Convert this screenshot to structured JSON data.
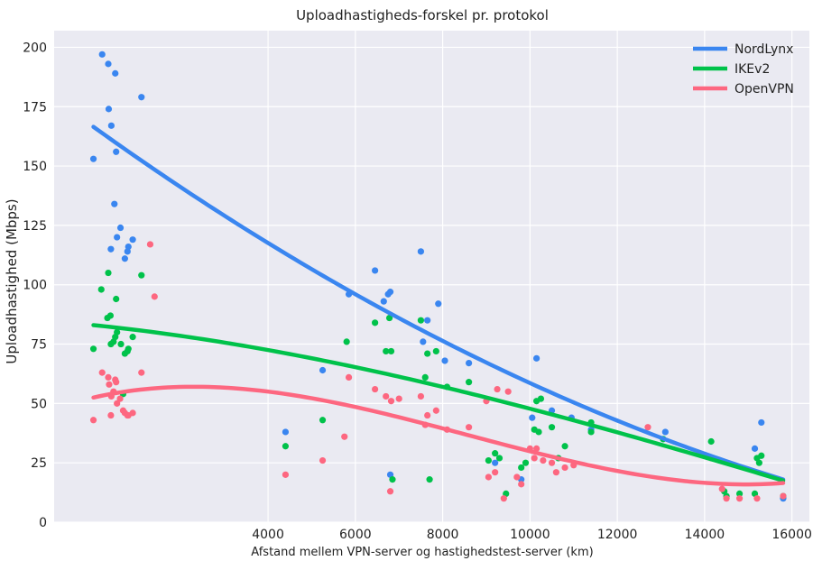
{
  "chart_data": {
    "type": "scatter",
    "title": "Uploadhastigheds-forskel pr. protokol",
    "xlabel": "Afstand mellem VPN-server og hastighedstest-server (km)",
    "ylabel": "Uploadhastighed (Mbps)",
    "xlim": [
      -900,
      16400
    ],
    "ylim": [
      0,
      207
    ],
    "xticks": [
      4000,
      6000,
      8000,
      10000,
      12000,
      14000,
      16000
    ],
    "yticks": [
      0,
      25,
      50,
      75,
      100,
      125,
      150,
      175,
      200
    ],
    "grid": true,
    "legend_position": "top-right",
    "series": [
      {
        "name": "NordLynx",
        "color": "#3a86f0",
        "points": [
          [
            0,
            153
          ],
          [
            200,
            197
          ],
          [
            340,
            193
          ],
          [
            350,
            174
          ],
          [
            410,
            167
          ],
          [
            400,
            115
          ],
          [
            480,
            134
          ],
          [
            500,
            189
          ],
          [
            520,
            156
          ],
          [
            540,
            120
          ],
          [
            620,
            124
          ],
          [
            720,
            111
          ],
          [
            780,
            114
          ],
          [
            800,
            116
          ],
          [
            900,
            119
          ],
          [
            1100,
            179
          ],
          [
            4400,
            38
          ],
          [
            5250,
            64
          ],
          [
            5850,
            96
          ],
          [
            6450,
            106
          ],
          [
            6650,
            93
          ],
          [
            6750,
            96
          ],
          [
            6800,
            97
          ],
          [
            6800,
            20
          ],
          [
            7500,
            114
          ],
          [
            7550,
            76
          ],
          [
            7650,
            85
          ],
          [
            7900,
            92
          ],
          [
            8050,
            68
          ],
          [
            8600,
            67
          ],
          [
            9200,
            25
          ],
          [
            9800,
            18
          ],
          [
            10050,
            44
          ],
          [
            10150,
            69
          ],
          [
            10500,
            47
          ],
          [
            10950,
            44
          ],
          [
            11400,
            39
          ],
          [
            13100,
            38
          ],
          [
            15150,
            31
          ],
          [
            15300,
            42
          ],
          [
            15800,
            10
          ]
        ]
      },
      {
        "name": "IKEv2",
        "color": "#00c24a",
        "points": [
          [
            0,
            73
          ],
          [
            180,
            98
          ],
          [
            320,
            86
          ],
          [
            340,
            105
          ],
          [
            390,
            87
          ],
          [
            400,
            75
          ],
          [
            460,
            76
          ],
          [
            500,
            78
          ],
          [
            520,
            94
          ],
          [
            540,
            80
          ],
          [
            630,
            75
          ],
          [
            680,
            54
          ],
          [
            720,
            71
          ],
          [
            780,
            72
          ],
          [
            800,
            73
          ],
          [
            900,
            78
          ],
          [
            1100,
            104
          ],
          [
            4400,
            32
          ],
          [
            5250,
            43
          ],
          [
            5800,
            76
          ],
          [
            6450,
            84
          ],
          [
            6700,
            72
          ],
          [
            6780,
            86
          ],
          [
            6820,
            72
          ],
          [
            6850,
            18
          ],
          [
            7500,
            85
          ],
          [
            7600,
            61
          ],
          [
            7650,
            71
          ],
          [
            7700,
            18
          ],
          [
            7850,
            72
          ],
          [
            8100,
            57
          ],
          [
            8600,
            59
          ],
          [
            9050,
            26
          ],
          [
            9200,
            29
          ],
          [
            9300,
            27
          ],
          [
            9450,
            12
          ],
          [
            9800,
            23
          ],
          [
            9900,
            25
          ],
          [
            10100,
            39
          ],
          [
            10150,
            51
          ],
          [
            10200,
            38
          ],
          [
            10250,
            52
          ],
          [
            10500,
            40
          ],
          [
            10650,
            27
          ],
          [
            10800,
            32
          ],
          [
            11400,
            38
          ],
          [
            11400,
            42
          ],
          [
            13050,
            35
          ],
          [
            14150,
            34
          ],
          [
            14450,
            13
          ],
          [
            14500,
            11
          ],
          [
            14800,
            12
          ],
          [
            15150,
            12
          ],
          [
            15200,
            27
          ],
          [
            15250,
            25
          ],
          [
            15300,
            28
          ],
          [
            15800,
            11
          ]
        ]
      },
      {
        "name": "OpenVPN",
        "color": "#fd6780",
        "points": [
          [
            0,
            43
          ],
          [
            200,
            63
          ],
          [
            340,
            61
          ],
          [
            360,
            58
          ],
          [
            400,
            45
          ],
          [
            410,
            53
          ],
          [
            460,
            55
          ],
          [
            500,
            60
          ],
          [
            520,
            59
          ],
          [
            540,
            50
          ],
          [
            610,
            52
          ],
          [
            680,
            47
          ],
          [
            720,
            46
          ],
          [
            780,
            45
          ],
          [
            800,
            45
          ],
          [
            900,
            46
          ],
          [
            1100,
            63
          ],
          [
            1300,
            117
          ],
          [
            1400,
            95
          ],
          [
            4400,
            20
          ],
          [
            5250,
            26
          ],
          [
            5750,
            36
          ],
          [
            5850,
            61
          ],
          [
            6450,
            56
          ],
          [
            6700,
            53
          ],
          [
            6800,
            13
          ],
          [
            6820,
            51
          ],
          [
            7000,
            52
          ],
          [
            7500,
            53
          ],
          [
            7600,
            41
          ],
          [
            7650,
            45
          ],
          [
            7850,
            47
          ],
          [
            8100,
            39
          ],
          [
            8600,
            40
          ],
          [
            9000,
            51
          ],
          [
            9050,
            19
          ],
          [
            9200,
            21
          ],
          [
            9250,
            56
          ],
          [
            9400,
            10
          ],
          [
            9500,
            55
          ],
          [
            9700,
            19
          ],
          [
            9800,
            16
          ],
          [
            10000,
            31
          ],
          [
            10100,
            27
          ],
          [
            10150,
            31
          ],
          [
            10300,
            26
          ],
          [
            10500,
            25
          ],
          [
            10600,
            21
          ],
          [
            10800,
            23
          ],
          [
            11000,
            24
          ],
          [
            12700,
            40
          ],
          [
            14150,
            27
          ],
          [
            14400,
            14
          ],
          [
            14500,
            10
          ],
          [
            14800,
            10
          ],
          [
            15200,
            10
          ],
          [
            15800,
            11
          ]
        ]
      }
    ],
    "trend_lines": [
      {
        "name": "NordLynx",
        "color": "#3a86f0",
        "degree": 2,
        "x_range": [
          0,
          15800
        ],
        "y_start": 166.5,
        "y_at_6000": 96,
        "y_end": 18
      },
      {
        "name": "IKEv2",
        "color": "#00c24a",
        "degree": 3,
        "x_range": [
          0,
          15800
        ],
        "y_start": 83,
        "y_at_4000": 72.5,
        "y_at_8000": 57,
        "y_end": 17.5
      },
      {
        "name": "OpenVPN",
        "color": "#fd6780",
        "degree": 3,
        "x_range": [
          0,
          15800
        ],
        "y_start": 52.5,
        "y_at_4000": 55,
        "y_at_8000": 39.5,
        "y_end": 16.5
      }
    ]
  }
}
